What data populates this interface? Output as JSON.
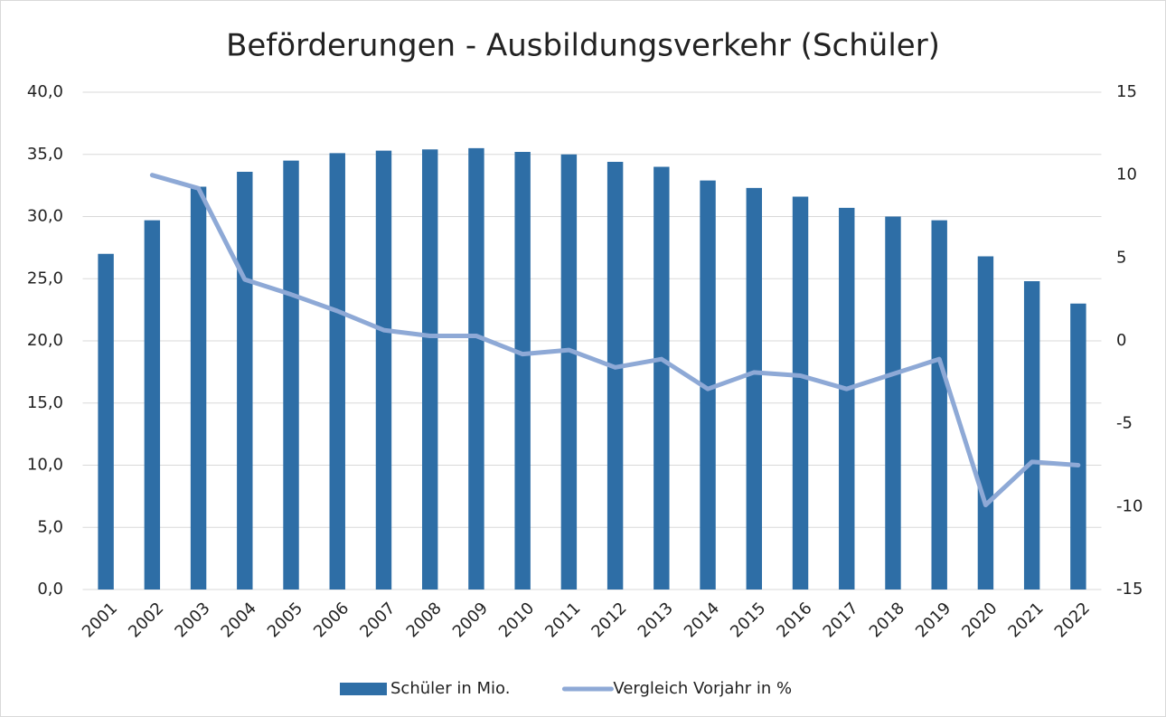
{
  "chart_data": {
    "type": "bar",
    "title": "Beförderungen - Ausbildungsverkehr (Schüler)",
    "categories": [
      "2001",
      "2002",
      "2003",
      "2004",
      "2005",
      "2006",
      "2007",
      "2008",
      "2009",
      "2010",
      "2011",
      "2012",
      "2013",
      "2014",
      "2015",
      "2016",
      "2017",
      "2018",
      "2019",
      "2020",
      "2021",
      "2022"
    ],
    "series": [
      {
        "name": "Schüler in Mio.",
        "type": "bar",
        "color": "#2e6ea6",
        "values": [
          27.0,
          29.7,
          32.4,
          33.6,
          34.5,
          35.1,
          35.3,
          35.4,
          35.5,
          35.2,
          35.0,
          34.4,
          34.0,
          32.9,
          32.3,
          31.6,
          30.7,
          30.0,
          29.7,
          26.8,
          24.8,
          23.0
        ]
      },
      {
        "name": "Vergleich Vorjahr in %",
        "type": "line",
        "axis": "y2",
        "color": "#8ea9d6",
        "values": [
          null,
          10.0,
          9.2,
          3.7,
          2.8,
          1.8,
          0.65,
          0.3,
          0.3,
          -0.8,
          -0.55,
          -1.6,
          -1.1,
          -2.9,
          -1.9,
          -2.1,
          -2.9,
          -2.0,
          -1.1,
          -9.9,
          -7.3,
          -7.5
        ]
      }
    ],
    "ylim": [
      0,
      40
    ],
    "yticks": [
      {
        "value": 0,
        "label": "0,0"
      },
      {
        "value": 5,
        "label": "5,0"
      },
      {
        "value": 10,
        "label": "10,0"
      },
      {
        "value": 15,
        "label": "15,0"
      },
      {
        "value": 20,
        "label": "20,0"
      },
      {
        "value": 25,
        "label": "25,0"
      },
      {
        "value": 30,
        "label": "30,0"
      },
      {
        "value": 35,
        "label": "35,0"
      },
      {
        "value": 40,
        "label": "40,0"
      }
    ],
    "y2lim": [
      -15,
      15
    ],
    "y2ticks": [
      -15,
      -10,
      -5,
      0,
      5,
      10,
      15
    ],
    "grid": true,
    "legend": "bottom"
  }
}
